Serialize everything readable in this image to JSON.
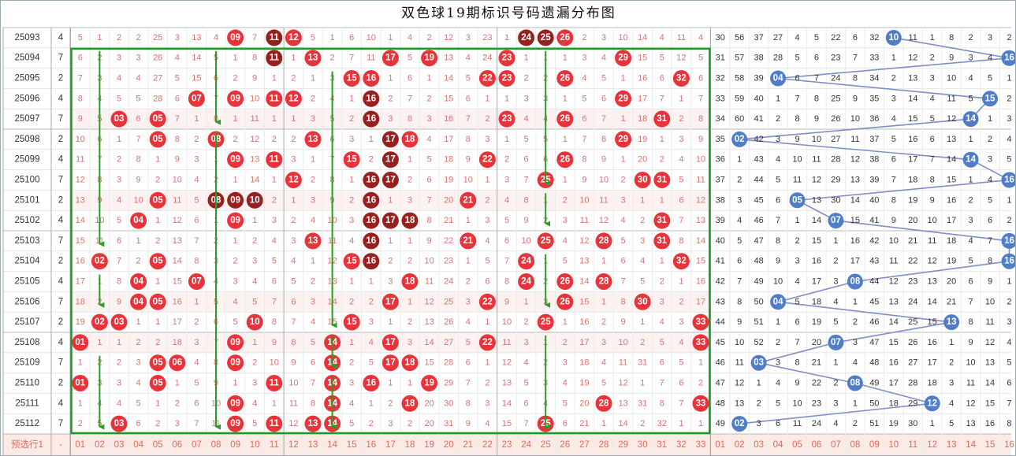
{
  "title": "双色球19期标识号码遗漏分布图",
  "chart_data": {
    "type": "table",
    "periods": [
      "25093",
      "25094",
      "25095",
      "25096",
      "25097",
      "25098",
      "25099",
      "25100",
      "25101",
      "25102",
      "25103",
      "25104",
      "25105",
      "25106",
      "25107",
      "25108",
      "25109",
      "25110",
      "25111",
      "25112"
    ],
    "blue_counts": [
      4,
      7,
      2,
      4,
      7,
      2,
      4,
      7,
      2,
      4,
      7,
      2,
      4,
      7,
      2,
      4,
      7,
      2,
      4,
      7
    ],
    "red_rows": [
      [
        "5",
        "1",
        "2",
        "2",
        "25",
        "3",
        "13",
        "4",
        "09",
        "7",
        "11",
        "12",
        "5",
        "1",
        "6",
        "10",
        "1",
        "4",
        "2",
        "12",
        "3",
        "23",
        "1",
        "24",
        "25",
        "26",
        "2",
        "3",
        "10",
        "14",
        "4",
        "11",
        "4"
      ],
      [
        "6",
        "2",
        "3",
        "3",
        "26",
        "4",
        "14",
        "5",
        "1",
        "8",
        "11",
        "1",
        "13",
        "2",
        "7",
        "11",
        "17",
        "5",
        "19",
        "13",
        "4",
        "24",
        "23",
        "1",
        "1",
        "1",
        "3",
        "4",
        "29",
        "15",
        "5",
        "12",
        "5"
      ],
      [
        "7",
        "3",
        "4",
        "4",
        "27",
        "5",
        "15",
        "6",
        "2",
        "9",
        "1",
        "2",
        "1",
        "3",
        "15",
        "16",
        "1",
        "6",
        "1",
        "14",
        "5",
        "22",
        "23",
        "2",
        "2",
        "26",
        "4",
        "5",
        "1",
        "16",
        "6",
        "32",
        "6"
      ],
      [
        "8",
        "4",
        "5",
        "5",
        "28",
        "6",
        "07",
        "7",
        "09",
        "10",
        "11",
        "12",
        "2",
        "4",
        "1",
        "16",
        "2",
        "7",
        "2",
        "15",
        "6",
        "1",
        "1",
        "3",
        "3",
        "1",
        "5",
        "6",
        "29",
        "17",
        "7",
        "1",
        "7"
      ],
      [
        "9",
        "5",
        "03",
        "6",
        "05",
        "7",
        "1",
        "8",
        "1",
        "11",
        "1",
        "1",
        "3",
        "5",
        "2",
        "16",
        "3",
        "8",
        "3",
        "16",
        "7",
        "2",
        "23",
        "4",
        "4",
        "26",
        "6",
        "7",
        "1",
        "18",
        "31",
        "2",
        "8"
      ],
      [
        "10",
        "6",
        "1",
        "7",
        "05",
        "8",
        "2",
        "08",
        "2",
        "12",
        "2",
        "2",
        "13",
        "6",
        "3",
        "1",
        "17",
        "18",
        "4",
        "17",
        "8",
        "3",
        "1",
        "5",
        "5",
        "1",
        "7",
        "8",
        "29",
        "19",
        "1",
        "3",
        "9"
      ],
      [
        "11",
        "7",
        "2",
        "8",
        "1",
        "9",
        "3",
        "1",
        "09",
        "13",
        "11",
        "3",
        "1",
        "7",
        "15",
        "2",
        "17",
        "1",
        "5",
        "18",
        "9",
        "22",
        "2",
        "6",
        "6",
        "26",
        "8",
        "9",
        "1",
        "20",
        "2",
        "4",
        "10"
      ],
      [
        "12",
        "8",
        "3",
        "9",
        "2",
        "10",
        "4",
        "2",
        "1",
        "14",
        "1",
        "12",
        "2",
        "8",
        "1",
        "16",
        "17",
        "2",
        "6",
        "19",
        "10",
        "1",
        "3",
        "7",
        "25",
        "1",
        "9",
        "10",
        "2",
        "30",
        "31",
        "5",
        "11"
      ],
      [
        "13",
        "9",
        "4",
        "10",
        "05",
        "11",
        "5",
        "08",
        "09",
        "10",
        "2",
        "1",
        "3",
        "9",
        "2",
        "16",
        "1",
        "3",
        "7",
        "20",
        "21",
        "2",
        "4",
        "8",
        "1",
        "2",
        "10",
        "11",
        "3",
        "1",
        "1",
        "6",
        "12"
      ],
      [
        "14",
        "10",
        "5",
        "04",
        "1",
        "12",
        "6",
        "1",
        "09",
        "1",
        "3",
        "2",
        "4",
        "10",
        "3",
        "16",
        "17",
        "18",
        "8",
        "21",
        "1",
        "3",
        "5",
        "9",
        "2",
        "3",
        "11",
        "12",
        "4",
        "2",
        "31",
        "7",
        "13"
      ],
      [
        "15",
        "11",
        "6",
        "1",
        "2",
        "13",
        "7",
        "2",
        "1",
        "2",
        "4",
        "3",
        "13",
        "11",
        "4",
        "16",
        "1",
        "1",
        "9",
        "22",
        "21",
        "4",
        "6",
        "10",
        "25",
        "4",
        "12",
        "28",
        "5",
        "3",
        "31",
        "8",
        "14"
      ],
      [
        "16",
        "02",
        "7",
        "2",
        "05",
        "14",
        "8",
        "3",
        "2",
        "3",
        "5",
        "4",
        "1",
        "12",
        "15",
        "16",
        "2",
        "2",
        "10",
        "23",
        "1",
        "5",
        "7",
        "24",
        "1",
        "5",
        "13",
        "1",
        "6",
        "4",
        "1",
        "32",
        "15"
      ],
      [
        "17",
        "1",
        "8",
        "04",
        "1",
        "15",
        "07",
        "4",
        "3",
        "4",
        "6",
        "5",
        "2",
        "13",
        "1",
        "1",
        "3",
        "18",
        "11",
        "24",
        "2",
        "6",
        "8",
        "24",
        "2",
        "26",
        "14",
        "28",
        "7",
        "5",
        "2",
        "1",
        "16"
      ],
      [
        "18",
        "2",
        "9",
        "04",
        "05",
        "16",
        "1",
        "5",
        "4",
        "5",
        "7",
        "6",
        "3",
        "14",
        "2",
        "2",
        "17",
        "1",
        "12",
        "25",
        "3",
        "22",
        "9",
        "1",
        "3",
        "26",
        "15",
        "1",
        "8",
        "30",
        "3",
        "2",
        "17"
      ],
      [
        "19",
        "02",
        "03",
        "1",
        "1",
        "17",
        "2",
        "6",
        "5",
        "10",
        "8",
        "7",
        "4",
        "15",
        "15",
        "3",
        "1",
        "2",
        "13",
        "26",
        "4",
        "1",
        "10",
        "2",
        "25",
        "1",
        "16",
        "2",
        "9",
        "1",
        "4",
        "3",
        "33"
      ],
      [
        "01",
        "1",
        "1",
        "2",
        "2",
        "18",
        "3",
        "7",
        "09",
        "1",
        "9",
        "8",
        "5",
        "14",
        "1",
        "4",
        "17",
        "3",
        "14",
        "27",
        "5",
        "22",
        "11",
        "3",
        "1",
        "2",
        "17",
        "3",
        "10",
        "2",
        "5",
        "4",
        "33"
      ],
      [
        "1",
        "2",
        "2",
        "3",
        "05",
        "06",
        "4",
        "8",
        "09",
        "2",
        "10",
        "9",
        "6",
        "14",
        "2",
        "5",
        "17",
        "18",
        "15",
        "28",
        "6",
        "1",
        "12",
        "4",
        "2",
        "3",
        "18",
        "4",
        "11",
        "31",
        "6",
        "5",
        "1"
      ],
      [
        "01",
        "3",
        "3",
        "4",
        "05",
        "1",
        "5",
        "9",
        "1",
        "3",
        "11",
        "10",
        "7",
        "14",
        "3",
        "16",
        "1",
        "1",
        "19",
        "29",
        "7",
        "2",
        "13",
        "5",
        "3",
        "4",
        "19",
        "5",
        "12",
        "1",
        "7",
        "6",
        "2"
      ],
      [
        "1",
        "4",
        "4",
        "5",
        "1",
        "2",
        "6",
        "10",
        "09",
        "4",
        "1",
        "11",
        "8",
        "14",
        "4",
        "1",
        "2",
        "18",
        "20",
        "30",
        "8",
        "3",
        "14",
        "6",
        "4",
        "5",
        "20",
        "28",
        "13",
        "31",
        "8",
        "7",
        "33"
      ],
      [
        "2",
        "5",
        "03",
        "6",
        "2",
        "3",
        "7",
        "11",
        "09",
        "5",
        "11",
        "12",
        "13",
        "14",
        "5",
        "2",
        "3",
        "2",
        "20",
        "31",
        "9",
        "4",
        "15",
        "7",
        "25",
        "6",
        "21",
        "1",
        "14",
        "2",
        "32",
        "1",
        "1"
      ]
    ],
    "dark_balls": [
      [
        0,
        10
      ],
      [
        0,
        22
      ],
      [
        0,
        23
      ],
      [
        0,
        24
      ],
      [
        1,
        10
      ],
      [
        3,
        15
      ],
      [
        4,
        15
      ],
      [
        5,
        16
      ],
      [
        6,
        16
      ],
      [
        7,
        15
      ],
      [
        7,
        16
      ],
      [
        8,
        7
      ],
      [
        8,
        8
      ],
      [
        8,
        9
      ],
      [
        8,
        15
      ],
      [
        9,
        15
      ],
      [
        9,
        16
      ],
      [
        9,
        17
      ],
      [
        10,
        15
      ],
      [
        11,
        15
      ]
    ],
    "blue_rows": [
      [
        "30",
        "56",
        "37",
        "27",
        "4",
        "5",
        "22",
        "6",
        "32",
        "10",
        "11",
        "1",
        "8",
        "2",
        "3",
        "2"
      ],
      [
        "31",
        "57",
        "38",
        "28",
        "5",
        "6",
        "23",
        "7",
        "33",
        "1",
        "12",
        "2",
        "9",
        "3",
        "4",
        "16"
      ],
      [
        "32",
        "58",
        "39",
        "04",
        "6",
        "7",
        "24",
        "8",
        "34",
        "2",
        "13",
        "3",
        "10",
        "4",
        "5",
        "1"
      ],
      [
        "33",
        "59",
        "40",
        "1",
        "7",
        "8",
        "25",
        "9",
        "35",
        "3",
        "14",
        "4",
        "11",
        "5",
        "15",
        "2"
      ],
      [
        "34",
        "60",
        "41",
        "2",
        "8",
        "9",
        "26",
        "10",
        "36",
        "4",
        "15",
        "5",
        "12",
        "14",
        "1",
        "3"
      ],
      [
        "35",
        "02",
        "42",
        "3",
        "9",
        "10",
        "27",
        "11",
        "37",
        "5",
        "16",
        "6",
        "13",
        "1",
        "2",
        "4"
      ],
      [
        "36",
        "1",
        "43",
        "4",
        "10",
        "11",
        "28",
        "12",
        "38",
        "6",
        "17",
        "7",
        "14",
        "14",
        "3",
        "5"
      ],
      [
        "37",
        "2",
        "44",
        "5",
        "11",
        "12",
        "29",
        "13",
        "39",
        "7",
        "18",
        "8",
        "15",
        "1",
        "4",
        "16"
      ],
      [
        "38",
        "3",
        "45",
        "6",
        "05",
        "13",
        "30",
        "14",
        "40",
        "8",
        "19",
        "9",
        "16",
        "2",
        "5",
        "1"
      ],
      [
        "39",
        "4",
        "46",
        "7",
        "1",
        "14",
        "07",
        "15",
        "41",
        "9",
        "20",
        "10",
        "17",
        "3",
        "6",
        "2"
      ],
      [
        "40",
        "5",
        "47",
        "8",
        "2",
        "15",
        "1",
        "16",
        "42",
        "10",
        "21",
        "11",
        "18",
        "4",
        "7",
        "16"
      ],
      [
        "41",
        "6",
        "48",
        "9",
        "3",
        "16",
        "2",
        "17",
        "43",
        "11",
        "22",
        "12",
        "19",
        "5",
        "8",
        "16"
      ],
      [
        "42",
        "7",
        "49",
        "10",
        "4",
        "17",
        "3",
        "08",
        "44",
        "12",
        "23",
        "13",
        "20",
        "6",
        "9",
        "1"
      ],
      [
        "43",
        "8",
        "50",
        "04",
        "5",
        "18",
        "4",
        "1",
        "45",
        "13",
        "24",
        "14",
        "21",
        "7",
        "10",
        "2"
      ],
      [
        "44",
        "9",
        "51",
        "1",
        "6",
        "19",
        "5",
        "2",
        "46",
        "14",
        "25",
        "15",
        "13",
        "8",
        "11",
        "3"
      ],
      [
        "45",
        "10",
        "52",
        "2",
        "7",
        "20",
        "07",
        "3",
        "47",
        "15",
        "26",
        "16",
        "1",
        "9",
        "12",
        "4"
      ],
      [
        "46",
        "11",
        "03",
        "3",
        "8",
        "21",
        "1",
        "4",
        "48",
        "16",
        "27",
        "17",
        "2",
        "10",
        "13",
        "5"
      ],
      [
        "47",
        "12",
        "1",
        "4",
        "9",
        "22",
        "2",
        "08",
        "49",
        "17",
        "28",
        "18",
        "3",
        "11",
        "14",
        "6"
      ],
      [
        "48",
        "13",
        "2",
        "5",
        "10",
        "23",
        "3",
        "1",
        "50",
        "18",
        "29",
        "12",
        "4",
        "12",
        "15",
        "7"
      ],
      [
        "49",
        "02",
        "3",
        "6",
        "11",
        "24",
        "4",
        "2",
        "51",
        "19",
        "30",
        "1",
        "5",
        "13",
        "16",
        "8"
      ]
    ],
    "blue_balls": [
      [
        0,
        9
      ],
      [
        1,
        15
      ],
      [
        2,
        3
      ],
      [
        3,
        14
      ],
      [
        4,
        13
      ],
      [
        5,
        1
      ],
      [
        6,
        13
      ],
      [
        7,
        15
      ],
      [
        8,
        4
      ],
      [
        9,
        6
      ],
      [
        10,
        15
      ],
      [
        11,
        15
      ],
      [
        12,
        7
      ],
      [
        13,
        3
      ],
      [
        14,
        12
      ],
      [
        15,
        6
      ],
      [
        16,
        2
      ],
      [
        17,
        7
      ],
      [
        18,
        11
      ],
      [
        19,
        1
      ]
    ],
    "footer": {
      "label": "预选行1",
      "dash": "-",
      "red_numbers": [
        "01",
        "02",
        "03",
        "04",
        "05",
        "06",
        "07",
        "08",
        "09",
        "10",
        "11",
        "12",
        "13",
        "14",
        "15",
        "16",
        "17",
        "18",
        "19",
        "20",
        "21",
        "22",
        "23",
        "24",
        "25",
        "26",
        "27",
        "28",
        "29",
        "30",
        "31",
        "32",
        "33"
      ],
      "blue_numbers": [
        "01",
        "02",
        "03",
        "04",
        "05",
        "06",
        "07",
        "08",
        "09",
        "10",
        "11",
        "12",
        "13",
        "14",
        "15",
        "16"
      ]
    },
    "highlight_box": {
      "row_start": 1,
      "row_end": 19,
      "col_start": 0,
      "col_end": 32
    },
    "pink_rows": [
      4,
      8,
      13,
      15
    ],
    "arrows": [
      {
        "col": 1,
        "row_from": 1,
        "row_to": 10
      },
      {
        "col": 1,
        "row_from": 12,
        "row_to": 13
      },
      {
        "col": 1,
        "row_from": 16,
        "row_to": 19
      },
      {
        "col": 7,
        "row_from": 1,
        "row_to": 4
      },
      {
        "col": 7,
        "row_from": 5,
        "row_to": 19
      },
      {
        "col": 13,
        "row_from": 2,
        "row_to": 14
      },
      {
        "col": 13,
        "row_from": 15,
        "row_to": 16
      },
      {
        "col": 13,
        "row_from": 17,
        "row_to": 19
      },
      {
        "col": 24,
        "row_from": 1,
        "row_to": 7
      },
      {
        "col": 24,
        "row_from": 8,
        "row_to": 9
      },
      {
        "col": 24,
        "row_from": 11,
        "row_to": 13
      },
      {
        "col": 24,
        "row_from": 15,
        "row_to": 19
      }
    ],
    "colors": {
      "red_ball": "#e8333b",
      "dark_ball": "#98201f",
      "blue_ball": "#4f7dc8",
      "blue_line": "#7f8ec7",
      "green": "#1a9c27",
      "arrow_green": "#25a022",
      "miss_text": "#d9736f",
      "footer_text": "#d96c5f",
      "footer_bg": "#fcebe4",
      "row_pink": "#fdf2f2",
      "period_text": "#333333"
    }
  }
}
